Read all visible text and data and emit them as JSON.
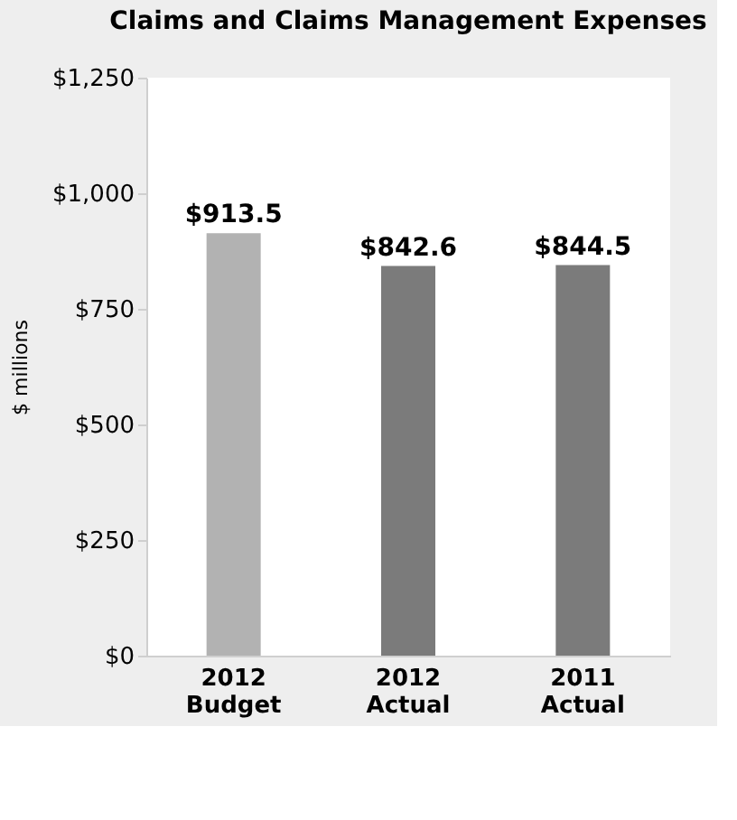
{
  "chart_data": {
    "type": "bar",
    "title": "Claims and Claims Management Expenses",
    "ylabel": "$ millions",
    "categories": [
      "2012\nBudget",
      "2012\nActual",
      "2011\nActual"
    ],
    "values": [
      913.5,
      842.6,
      844.5
    ],
    "colors": [
      "#b2b2b2",
      "#7b7b7b",
      "#7b7b7b"
    ],
    "value_labels": [
      "$913.5",
      "$842.6",
      "$844.5"
    ],
    "ylim": [
      0,
      1250
    ],
    "yticks": [
      {
        "value": 0,
        "label": "$0"
      },
      {
        "value": 250,
        "label": "$250"
      },
      {
        "value": 500,
        "label": "$500"
      },
      {
        "value": 750,
        "label": "$750"
      },
      {
        "value": 1000,
        "label": "$1,000"
      },
      {
        "value": 1250,
        "label": "$1,250"
      }
    ],
    "grid": false
  }
}
